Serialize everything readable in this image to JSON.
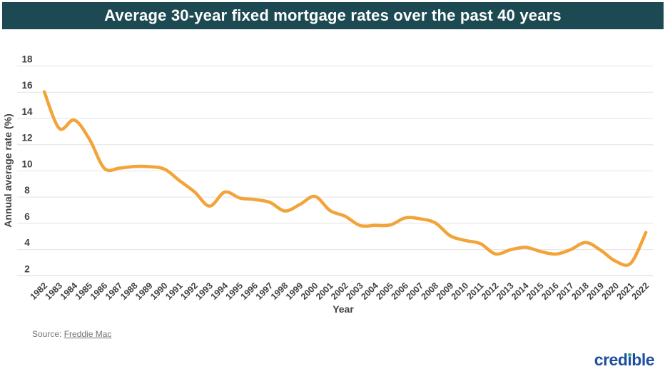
{
  "header": {
    "title": "Average 30-year fixed mortgage rates over the past 40 years"
  },
  "chart_data": {
    "type": "line",
    "title": "Average 30-year fixed mortgage rates over the past 40 years",
    "xlabel": "Year",
    "ylabel": "Annual average rate (%)",
    "ylim": [
      2,
      18
    ],
    "ytick_step": 2,
    "grid": true,
    "legend": "none",
    "x": [
      1982,
      1983,
      1984,
      1985,
      1986,
      1987,
      1988,
      1989,
      1990,
      1991,
      1992,
      1993,
      1994,
      1995,
      1996,
      1997,
      1998,
      1999,
      2000,
      2001,
      2002,
      2003,
      2004,
      2005,
      2006,
      2007,
      2008,
      2009,
      2010,
      2011,
      2012,
      2013,
      2014,
      2015,
      2016,
      2017,
      2018,
      2019,
      2020,
      2021,
      2022
    ],
    "values": [
      16.04,
      13.24,
      13.88,
      12.43,
      10.19,
      10.21,
      10.34,
      10.32,
      10.13,
      9.25,
      8.39,
      7.31,
      8.38,
      7.93,
      7.81,
      7.6,
      6.94,
      7.44,
      8.05,
      6.97,
      6.54,
      5.83,
      5.84,
      5.87,
      6.41,
      6.34,
      6.03,
      5.04,
      4.69,
      4.45,
      3.66,
      3.98,
      4.17,
      3.85,
      3.65,
      3.99,
      4.54,
      3.94,
      3.1,
      2.96,
      5.3
    ]
  },
  "footer": {
    "source_label": "Source:",
    "source_link": "Freddie Mac"
  },
  "branding": {
    "logo_text_left": "cred",
    "logo_text_i": "ı",
    "logo_text_right": "ble"
  },
  "colors": {
    "header_bg": "#1d4a52",
    "line": "#F2A43A",
    "gridline": "#e3e3e3",
    "axis_line": "#d7d7d7",
    "tick_text": "#3f4245",
    "logo_blue": "#1d4f9f",
    "logo_green": "#2fae78"
  }
}
